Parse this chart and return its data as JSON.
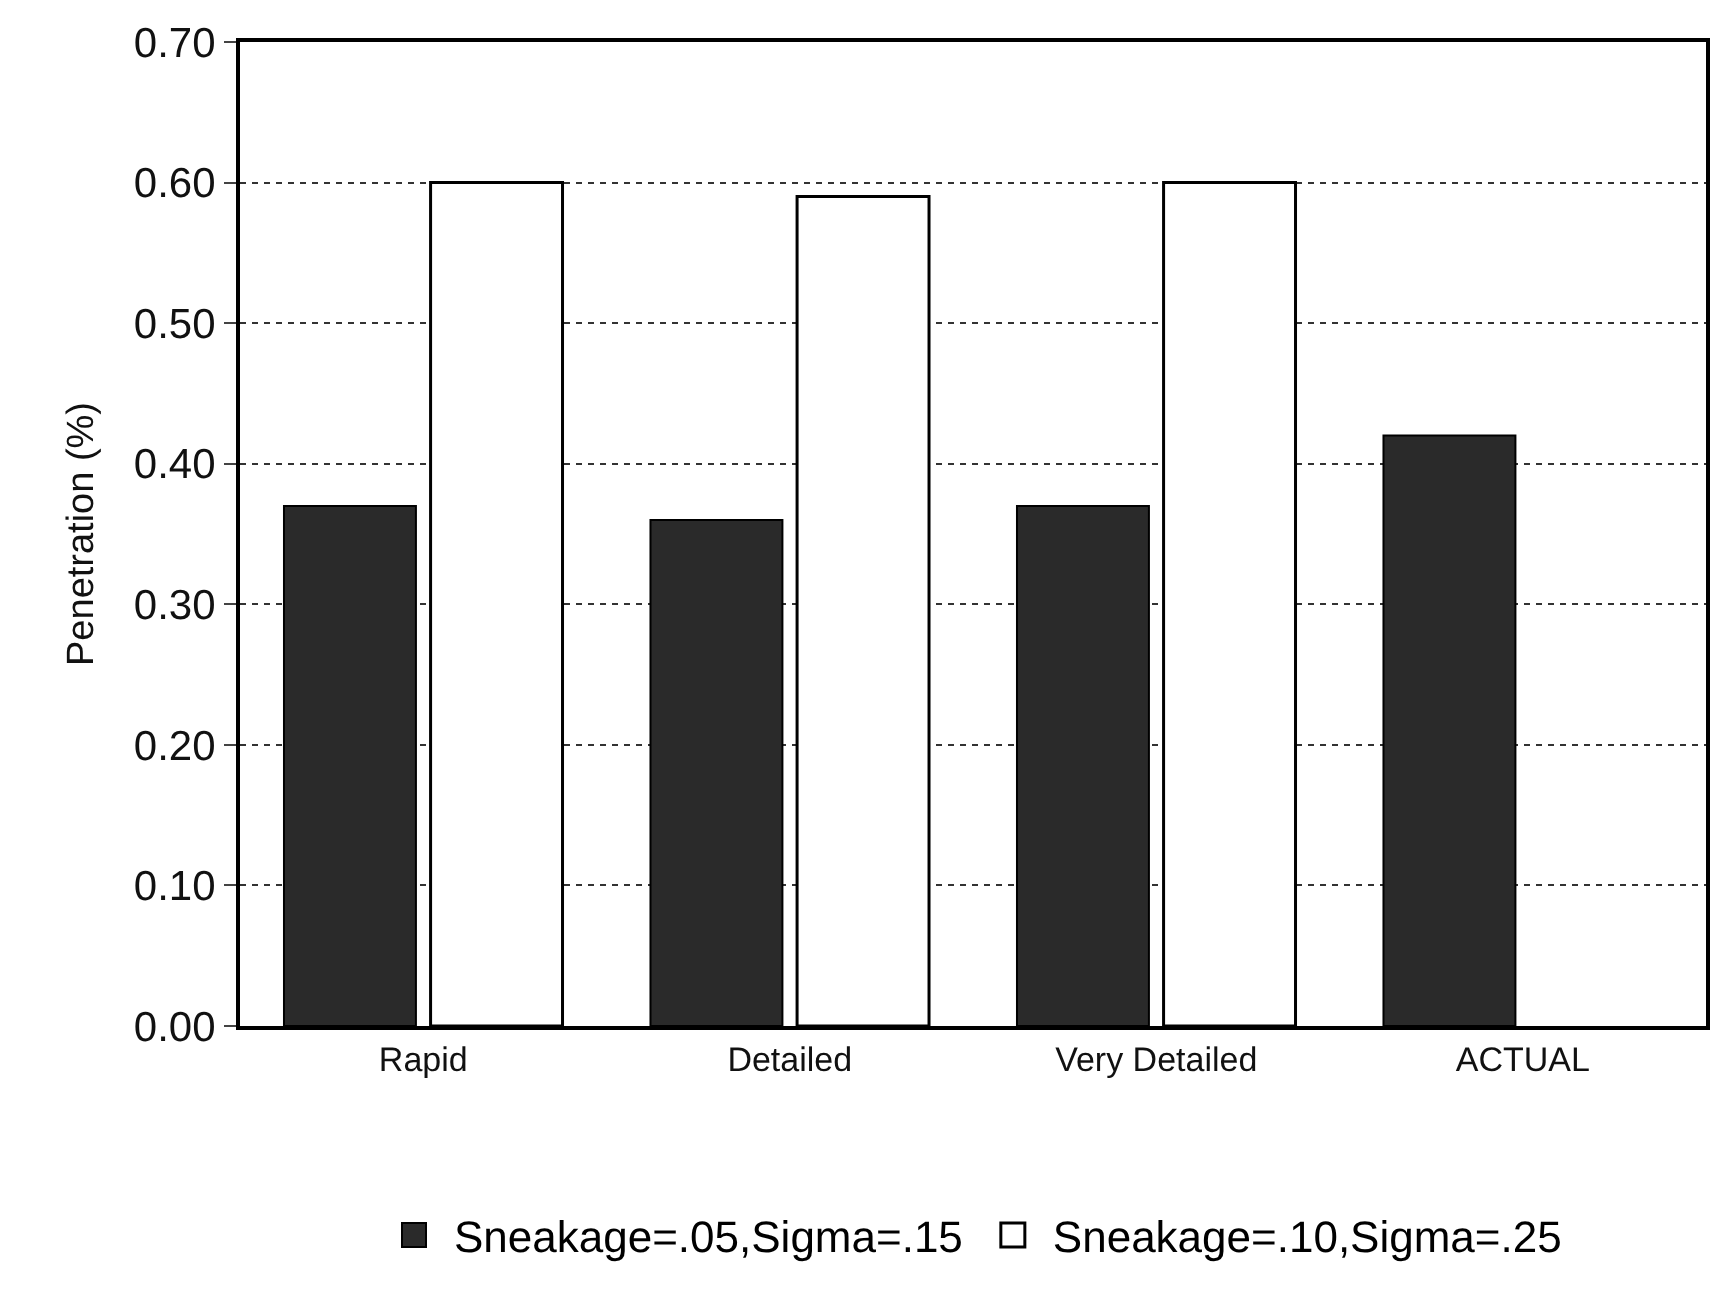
{
  "chart_data": {
    "type": "bar",
    "ylabel": "Penetration (%)",
    "categories": [
      "Rapid",
      "Detailed",
      "Very Detailed",
      "ACTUAL"
    ],
    "series": [
      {
        "name": "Sneakage=.05,Sigma=.15",
        "color": "#2a2a2a",
        "values": [
          0.37,
          0.36,
          0.37,
          0.42
        ]
      },
      {
        "name": "Sneakage=.10,Sigma=.25",
        "color": "#ffffff",
        "values": [
          0.6,
          0.59,
          0.6,
          null
        ]
      }
    ],
    "ylim": [
      0,
      0.7
    ],
    "yticks": [
      {
        "value": 0,
        "label": "0.00"
      },
      {
        "value": 0.1,
        "label": "0.10"
      },
      {
        "value": 0.2,
        "label": "0.20"
      },
      {
        "value": 0.3,
        "label": "0.30"
      },
      {
        "value": 0.4,
        "label": "0.40"
      },
      {
        "value": 0.5,
        "label": "0.50"
      },
      {
        "value": 0.6,
        "label": "0.60"
      },
      {
        "value": 0.7,
        "label": "0.70"
      }
    ],
    "grid": "y",
    "legend": "bottom"
  }
}
